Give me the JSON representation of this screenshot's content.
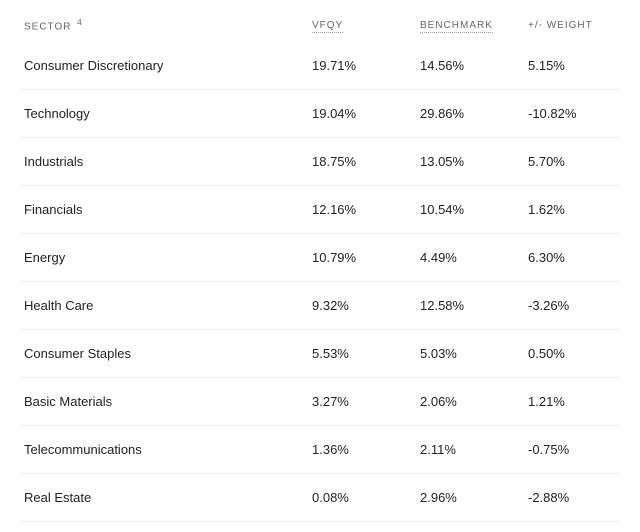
{
  "table": {
    "headers": {
      "sector": "SECTOR",
      "sector_footnote": "4",
      "vfqy": "VFQY",
      "benchmark": "BENCHMARK",
      "weight": "+/- WEIGHT"
    },
    "rows": [
      {
        "sector": "Consumer Discretionary",
        "vfqy": "19.71%",
        "benchmark": "14.56%",
        "weight": "5.15%"
      },
      {
        "sector": "Technology",
        "vfqy": "19.04%",
        "benchmark": "29.86%",
        "weight": "-10.82%"
      },
      {
        "sector": "Industrials",
        "vfqy": "18.75%",
        "benchmark": "13.05%",
        "weight": "5.70%"
      },
      {
        "sector": "Financials",
        "vfqy": "12.16%",
        "benchmark": "10.54%",
        "weight": "1.62%"
      },
      {
        "sector": "Energy",
        "vfqy": "10.79%",
        "benchmark": "4.49%",
        "weight": "6.30%"
      },
      {
        "sector": "Health Care",
        "vfqy": "9.32%",
        "benchmark": "12.58%",
        "weight": "-3.26%"
      },
      {
        "sector": "Consumer Staples",
        "vfqy": "5.53%",
        "benchmark": "5.03%",
        "weight": "0.50%"
      },
      {
        "sector": "Basic Materials",
        "vfqy": "3.27%",
        "benchmark": "2.06%",
        "weight": "1.21%"
      },
      {
        "sector": "Telecommunications",
        "vfqy": "1.36%",
        "benchmark": "2.11%",
        "weight": "-0.75%"
      },
      {
        "sector": "Real Estate",
        "vfqy": "0.08%",
        "benchmark": "2.96%",
        "weight": "-2.88%"
      }
    ]
  }
}
